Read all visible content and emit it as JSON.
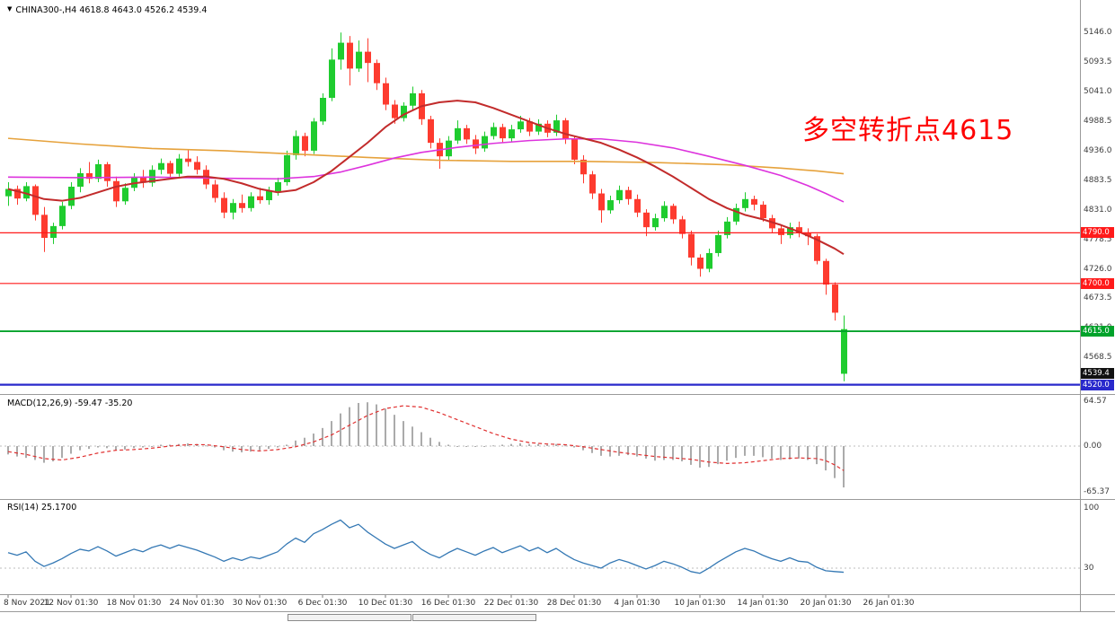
{
  "header": {
    "collapse_icon": "▼",
    "title": "CHINA300-,H4 4618.8 4643.0 4526.2 4539.4"
  },
  "annotation": {
    "text": "多空转折点4615",
    "color": "#fe0000"
  },
  "chart_data": {
    "type": "candlestick",
    "symbol": "CHINA300-",
    "timeframe": "H4",
    "current_bar": {
      "open": 4618.8,
      "high": 4643.0,
      "low": 4526.2,
      "close": 4539.4
    },
    "colors": {
      "up": "#1fcc2f",
      "down": "#fd3b2f",
      "hist": "#ababab",
      "signal": "#e03030",
      "rsi": "#3478b4",
      "grid": "#bdbdbd"
    },
    "price_axis": {
      "visible_range": [
        4505,
        5180
      ],
      "ticks": [
        5146.0,
        5093.5,
        5041.0,
        4988.5,
        4936.0,
        4883.5,
        4831.0,
        4778.5,
        4726.0,
        4673.5,
        4621.0,
        4568.5
      ]
    },
    "x_axis": {
      "labels": [
        "8 Nov 2021",
        "12 Nov 01:30",
        "18 Nov 01:30",
        "24 Nov 01:30",
        "30 Nov 01:30",
        "6 Dec 01:30",
        "10 Dec 01:30",
        "16 Dec 01:30",
        "22 Dec 01:30",
        "28 Dec 01:30",
        "4 Jan 01:30",
        "10 Jan 01:30",
        "14 Jan 01:30",
        "20 Jan 01:30",
        "26 Jan 01:30"
      ],
      "label_indices": [
        0,
        7,
        14,
        21,
        28,
        35,
        42,
        49,
        56,
        63,
        70,
        77,
        84,
        91,
        98
      ]
    },
    "candles": [
      [
        4855,
        4880,
        4838,
        4868
      ],
      [
        4868,
        4874,
        4840,
        4851
      ],
      [
        4851,
        4880,
        4846,
        4873
      ],
      [
        4873,
        4876,
        4812,
        4822
      ],
      [
        4822,
        4836,
        4756,
        4781
      ],
      [
        4781,
        4808,
        4770,
        4802
      ],
      [
        4802,
        4845,
        4796,
        4838
      ],
      [
        4838,
        4880,
        4832,
        4872
      ],
      [
        4872,
        4905,
        4862,
        4896
      ],
      [
        4896,
        4916,
        4878,
        4886
      ],
      [
        4886,
        4920,
        4880,
        4912
      ],
      [
        4912,
        4916,
        4872,
        4882
      ],
      [
        4882,
        4890,
        4836,
        4846
      ],
      [
        4846,
        4878,
        4840,
        4870
      ],
      [
        4870,
        4896,
        4864,
        4888
      ],
      [
        4888,
        4902,
        4870,
        4879
      ],
      [
        4879,
        4910,
        4872,
        4902
      ],
      [
        4902,
        4922,
        4894,
        4914
      ],
      [
        4914,
        4918,
        4886,
        4895
      ],
      [
        4895,
        4930,
        4890,
        4922
      ],
      [
        4922,
        4938,
        4908,
        4916
      ],
      [
        4916,
        4926,
        4894,
        4902
      ],
      [
        4902,
        4910,
        4868,
        4876
      ],
      [
        4876,
        4884,
        4844,
        4852
      ],
      [
        4852,
        4862,
        4816,
        4826
      ],
      [
        4826,
        4850,
        4814,
        4843
      ],
      [
        4843,
        4858,
        4826,
        4834
      ],
      [
        4834,
        4862,
        4828,
        4855
      ],
      [
        4855,
        4870,
        4842,
        4848
      ],
      [
        4848,
        4872,
        4840,
        4864
      ],
      [
        4864,
        4888,
        4856,
        4880
      ],
      [
        4880,
        4936,
        4874,
        4928
      ],
      [
        4928,
        4972,
        4920,
        4962
      ],
      [
        4962,
        4968,
        4926,
        4936
      ],
      [
        4936,
        4994,
        4930,
        4988
      ],
      [
        4988,
        5038,
        4982,
        5030
      ],
      [
        5030,
        5118,
        5024,
        5098
      ],
      [
        5098,
        5146,
        5080,
        5128
      ],
      [
        5128,
        5140,
        5052,
        5082
      ],
      [
        5082,
        5132,
        5076,
        5112
      ],
      [
        5112,
        5136,
        5058,
        5092
      ],
      [
        5092,
        5098,
        5044,
        5056
      ],
      [
        5056,
        5066,
        5008,
        5018
      ],
      [
        5018,
        5026,
        4984,
        4994
      ],
      [
        4994,
        5022,
        4988,
        5016
      ],
      [
        5016,
        5050,
        5008,
        5038
      ],
      [
        5038,
        5044,
        4982,
        4992
      ],
      [
        4992,
        4998,
        4940,
        4950
      ],
      [
        4950,
        4958,
        4904,
        4926
      ],
      [
        4926,
        4962,
        4918,
        4954
      ],
      [
        4954,
        4990,
        4948,
        4976
      ],
      [
        4976,
        4982,
        4948,
        4956
      ],
      [
        4956,
        4964,
        4930,
        4940
      ],
      [
        4940,
        4970,
        4934,
        4962
      ],
      [
        4962,
        4986,
        4956,
        4978
      ],
      [
        4978,
        4984,
        4950,
        4958
      ],
      [
        4958,
        4982,
        4952,
        4974
      ],
      [
        4974,
        4998,
        4968,
        4988
      ],
      [
        4988,
        4994,
        4962,
        4970
      ],
      [
        4970,
        4992,
        4964,
        4984
      ],
      [
        4984,
        4990,
        4960,
        4968
      ],
      [
        4968,
        5000,
        4962,
        4990
      ],
      [
        4990,
        4994,
        4948,
        4956
      ],
      [
        4956,
        4962,
        4912,
        4920
      ],
      [
        4920,
        4928,
        4878,
        4894
      ],
      [
        4894,
        4900,
        4850,
        4860
      ],
      [
        4860,
        4868,
        4808,
        4830
      ],
      [
        4830,
        4856,
        4824,
        4848
      ],
      [
        4848,
        4874,
        4842,
        4866
      ],
      [
        4866,
        4872,
        4840,
        4850
      ],
      [
        4850,
        4858,
        4818,
        4826
      ],
      [
        4826,
        4832,
        4784,
        4800
      ],
      [
        4800,
        4824,
        4794,
        4816
      ],
      [
        4816,
        4846,
        4810,
        4838
      ],
      [
        4838,
        4842,
        4806,
        4814
      ],
      [
        4814,
        4820,
        4780,
        4788
      ],
      [
        4788,
        4794,
        4732,
        4746
      ],
      [
        4746,
        4752,
        4712,
        4726
      ],
      [
        4726,
        4762,
        4720,
        4754
      ],
      [
        4754,
        4794,
        4748,
        4786
      ],
      [
        4786,
        4818,
        4780,
        4810
      ],
      [
        4810,
        4842,
        4804,
        4834
      ],
      [
        4834,
        4862,
        4828,
        4850
      ],
      [
        4850,
        4856,
        4830,
        4840
      ],
      [
        4840,
        4846,
        4810,
        4816
      ],
      [
        4816,
        4822,
        4790,
        4798
      ],
      [
        4798,
        4804,
        4770,
        4786
      ],
      [
        4786,
        4808,
        4780,
        4800
      ],
      [
        4800,
        4810,
        4782,
        4790
      ],
      [
        4790,
        4798,
        4768,
        4784
      ],
      [
        4784,
        4788,
        4734,
        4740
      ],
      [
        4740,
        4744,
        4680,
        4698
      ],
      [
        4698,
        4702,
        4634,
        4648
      ],
      [
        4618.8,
        4643.0,
        4526.2,
        4539.4,
        "up"
      ]
    ],
    "moving_averages": [
      {
        "name": "ma-slow-orange",
        "color": "#e6a23c",
        "width": 1.6,
        "points": [
          [
            0,
            4958
          ],
          [
            8,
            4948
          ],
          [
            16,
            4940
          ],
          [
            24,
            4936
          ],
          [
            32,
            4930
          ],
          [
            40,
            4924
          ],
          [
            48,
            4919
          ],
          [
            56,
            4917
          ],
          [
            64,
            4917
          ],
          [
            72,
            4915
          ],
          [
            80,
            4911
          ],
          [
            86,
            4905
          ],
          [
            90,
            4900
          ],
          [
            93,
            4895
          ]
        ]
      },
      {
        "name": "ma-mid-magenta",
        "color": "#dd33dd",
        "width": 1.6,
        "points": [
          [
            0,
            4889
          ],
          [
            8,
            4888
          ],
          [
            16,
            4889
          ],
          [
            24,
            4887
          ],
          [
            30,
            4886
          ],
          [
            34,
            4890
          ],
          [
            37,
            4898
          ],
          [
            40,
            4910
          ],
          [
            43,
            4923
          ],
          [
            46,
            4933
          ],
          [
            50,
            4942
          ],
          [
            54,
            4949
          ],
          [
            58,
            4954
          ],
          [
            62,
            4957
          ],
          [
            66,
            4957
          ],
          [
            70,
            4951
          ],
          [
            74,
            4941
          ],
          [
            78,
            4926
          ],
          [
            82,
            4910
          ],
          [
            86,
            4892
          ],
          [
            89,
            4874
          ],
          [
            91,
            4860
          ],
          [
            93,
            4845
          ]
        ]
      },
      {
        "name": "ma-fast-red",
        "color": "#c22b2b",
        "width": 2,
        "points": [
          [
            0,
            4868
          ],
          [
            2,
            4860
          ],
          [
            4,
            4850
          ],
          [
            6,
            4847
          ],
          [
            8,
            4852
          ],
          [
            10,
            4862
          ],
          [
            12,
            4872
          ],
          [
            14,
            4878
          ],
          [
            16,
            4882
          ],
          [
            18,
            4886
          ],
          [
            20,
            4890
          ],
          [
            22,
            4890
          ],
          [
            24,
            4886
          ],
          [
            26,
            4878
          ],
          [
            28,
            4868
          ],
          [
            30,
            4862
          ],
          [
            32,
            4866
          ],
          [
            34,
            4880
          ],
          [
            36,
            4900
          ],
          [
            38,
            4925
          ],
          [
            40,
            4950
          ],
          [
            42,
            4978
          ],
          [
            44,
            5000
          ],
          [
            46,
            5015
          ],
          [
            48,
            5022
          ],
          [
            50,
            5025
          ],
          [
            52,
            5022
          ],
          [
            54,
            5012
          ],
          [
            56,
            5000
          ],
          [
            58,
            4988
          ],
          [
            60,
            4976
          ],
          [
            62,
            4966
          ],
          [
            64,
            4958
          ],
          [
            66,
            4950
          ],
          [
            68,
            4938
          ],
          [
            70,
            4924
          ],
          [
            72,
            4908
          ],
          [
            74,
            4890
          ],
          [
            76,
            4870
          ],
          [
            78,
            4850
          ],
          [
            80,
            4834
          ],
          [
            82,
            4822
          ],
          [
            84,
            4814
          ],
          [
            86,
            4804
          ],
          [
            88,
            4792
          ],
          [
            90,
            4778
          ],
          [
            92,
            4762
          ],
          [
            93,
            4752
          ]
        ]
      }
    ],
    "horizontal_lines": [
      {
        "price": 4790.0,
        "label": "4790.0",
        "color": "#ff1a1a",
        "width": 1.2
      },
      {
        "price": 4700.0,
        "label": "4700.0",
        "color": "#ff1a1a",
        "width": 1.2
      },
      {
        "price": 4615.0,
        "label": "4615.0",
        "color": "#00a22a",
        "width": 1.8
      },
      {
        "price": 4520.0,
        "label": "4520.0",
        "color": "#2929cc",
        "width": 2.2
      }
    ],
    "current_price_tag": {
      "value": "4539.4",
      "bg": "#111111"
    },
    "macd": {
      "label": "MACD(12,26,9) -59.47 -35.20",
      "value": -59.47,
      "signal_value": -35.2,
      "axis_ticks": [
        {
          "v": 64.57,
          "t": "64.57"
        },
        {
          "v": 0,
          "t": "0.00"
        },
        {
          "v": -65.37,
          "t": "-65.37"
        }
      ],
      "histogram": [
        -12,
        -15,
        -17,
        -20,
        -24,
        -22,
        -17,
        -11,
        -6,
        -4,
        -2,
        -3,
        -6,
        -5,
        -3,
        -2,
        0,
        2,
        2,
        3,
        4,
        3,
        1,
        -2,
        -6,
        -8,
        -9,
        -8,
        -6,
        -4,
        -2,
        2,
        8,
        12,
        18,
        26,
        36,
        47,
        56,
        62,
        63,
        60,
        54,
        45,
        36,
        28,
        20,
        12,
        6,
        2,
        0,
        -1,
        -1,
        0,
        1,
        2,
        3,
        4,
        3,
        3,
        2,
        3,
        1,
        -2,
        -6,
        -10,
        -14,
        -15,
        -14,
        -13,
        -15,
        -18,
        -21,
        -20,
        -20,
        -22,
        -27,
        -31,
        -30,
        -26,
        -21,
        -17,
        -14,
        -14,
        -16,
        -18,
        -20,
        -19,
        -18,
        -20,
        -26,
        -35,
        -46,
        -59.47
      ],
      "signal_points": [
        [
          0,
          -8
        ],
        [
          2,
          -12
        ],
        [
          4,
          -18
        ],
        [
          6,
          -20
        ],
        [
          8,
          -16
        ],
        [
          10,
          -10
        ],
        [
          12,
          -6
        ],
        [
          14,
          -5
        ],
        [
          16,
          -3
        ],
        [
          18,
          0
        ],
        [
          20,
          2
        ],
        [
          22,
          2
        ],
        [
          24,
          -1
        ],
        [
          26,
          -5
        ],
        [
          28,
          -7
        ],
        [
          30,
          -5
        ],
        [
          32,
          -1
        ],
        [
          34,
          6
        ],
        [
          36,
          16
        ],
        [
          38,
          30
        ],
        [
          40,
          44
        ],
        [
          42,
          54
        ],
        [
          44,
          58
        ],
        [
          46,
          56
        ],
        [
          48,
          48
        ],
        [
          50,
          38
        ],
        [
          52,
          28
        ],
        [
          54,
          18
        ],
        [
          56,
          10
        ],
        [
          58,
          5
        ],
        [
          60,
          3
        ],
        [
          62,
          2
        ],
        [
          64,
          -1
        ],
        [
          66,
          -5
        ],
        [
          68,
          -9
        ],
        [
          70,
          -12
        ],
        [
          72,
          -15
        ],
        [
          74,
          -17
        ],
        [
          76,
          -19
        ],
        [
          78,
          -23
        ],
        [
          80,
          -25
        ],
        [
          82,
          -24
        ],
        [
          84,
          -21
        ],
        [
          86,
          -18
        ],
        [
          88,
          -17
        ],
        [
          90,
          -18
        ],
        [
          91,
          -21
        ],
        [
          92,
          -27
        ],
        [
          93,
          -35.2
        ]
      ]
    },
    "rsi": {
      "label": "RSI(14) 25.1700",
      "value": 25.17,
      "axis_ticks": [
        {
          "v": 100,
          "t": "100"
        },
        {
          "v": 30,
          "t": "30"
        }
      ],
      "level": 30,
      "values": [
        48,
        45,
        49,
        38,
        32,
        36,
        41,
        47,
        52,
        50,
        55,
        50,
        44,
        48,
        52,
        49,
        54,
        57,
        53,
        57,
        54,
        51,
        47,
        43,
        38,
        42,
        39,
        43,
        41,
        45,
        49,
        58,
        65,
        60,
        70,
        75,
        81,
        86,
        77,
        81,
        72,
        65,
        58,
        53,
        57,
        61,
        52,
        46,
        42,
        48,
        53,
        49,
        45,
        50,
        54,
        48,
        52,
        56,
        50,
        54,
        48,
        53,
        46,
        40,
        36,
        33,
        30,
        36,
        40,
        37,
        33,
        29,
        33,
        38,
        35,
        31,
        26,
        24,
        30,
        37,
        43,
        49,
        53,
        50,
        45,
        41,
        38,
        42,
        38,
        37,
        31,
        27,
        26,
        25.2
      ]
    }
  }
}
